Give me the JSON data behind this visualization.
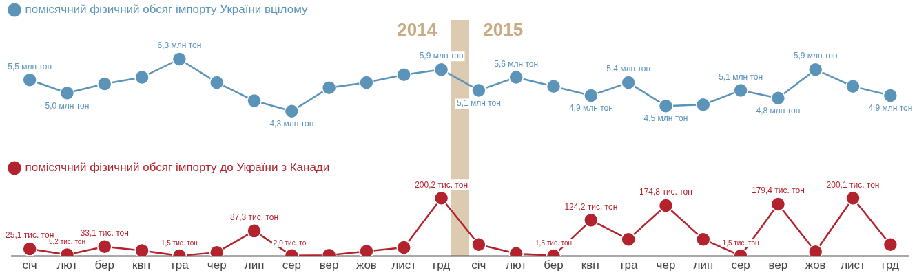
{
  "chart_data": [
    {
      "type": "line",
      "categories": [
        "січ",
        "лют",
        "бер",
        "квіт",
        "тра",
        "чер",
        "лип",
        "сер",
        "вер",
        "жов",
        "лист",
        "грд",
        "січ",
        "лют",
        "бер",
        "квіт",
        "тра",
        "чер",
        "лип",
        "сер",
        "вер",
        "жов",
        "лист",
        "грд"
      ],
      "series": [
        {
          "name": "помісячний фізичний обсяг імпорту України вцілому",
          "color": "#5b93b9",
          "values": [
            5.5,
            5.0,
            5.35,
            5.6,
            6.3,
            5.4,
            4.7,
            4.3,
            5.2,
            5.4,
            5.7,
            5.9,
            5.1,
            5.6,
            5.25,
            4.9,
            5.4,
            4.5,
            4.55,
            5.1,
            4.8,
            5.9,
            5.25,
            4.9
          ],
          "value_labels": [
            "5,5 млн тон",
            "5,0 млн тон",
            null,
            null,
            "6,3 млн тон",
            null,
            null,
            "4,3 млн тон",
            null,
            null,
            null,
            "5,9 млн тон",
            "5,1 млн тон",
            "5,6 млн тон",
            null,
            "4,9 млн тон",
            "5,4 млн тон",
            "4,5 млн тон",
            null,
            "5,1 млн тон",
            "4,8 млн тон",
            "5,9 млн тон",
            null,
            "4,9 млн тон"
          ]
        }
      ],
      "tick_labels": false,
      "grid": false,
      "legend": "top left",
      "marker": "circle",
      "line_style": "solid",
      "annotations": [
        "2014",
        "2015"
      ]
    },
    {
      "type": "line",
      "categories": [
        "січ",
        "лют",
        "бер",
        "квіт",
        "тра",
        "чер",
        "лип",
        "сер",
        "вер",
        "жов",
        "лист",
        "грд",
        "січ",
        "лют",
        "бер",
        "квіт",
        "тра",
        "чер",
        "лип",
        "сер",
        "вер",
        "жов",
        "лист",
        "грд"
      ],
      "series": [
        {
          "name": "помісячний фізичний обсяг імпорту до України з Канади",
          "color": "#b3232d",
          "values": [
            25.1,
            5.2,
            33.1,
            19,
            1.5,
            13,
            87.3,
            2.0,
            3,
            17,
            30,
            200.2,
            40,
            9,
            1.5,
            124.2,
            58,
            174.8,
            58,
            1.5,
            179.4,
            15,
            200.1,
            40
          ],
          "value_labels": [
            "25,1 тис. тон",
            "5,2 тис. тон",
            "33,1 тис. тон",
            null,
            "1,5 тис. тон",
            null,
            "87,3 тис. тон",
            "2,0 тис. тон",
            null,
            null,
            null,
            "200,2 тис. тон",
            null,
            null,
            "1,5 тис. тон",
            "124,2 тис. тон",
            null,
            "174,8 тис. тон",
            null,
            "1,5 тис. тон",
            "179,4 тис. тон",
            null,
            "200,1 тис. тон",
            null
          ]
        }
      ],
      "tick_labels": "x",
      "grid": false,
      "legend": "top left",
      "marker": "circle",
      "line_style": "solid"
    }
  ]
}
